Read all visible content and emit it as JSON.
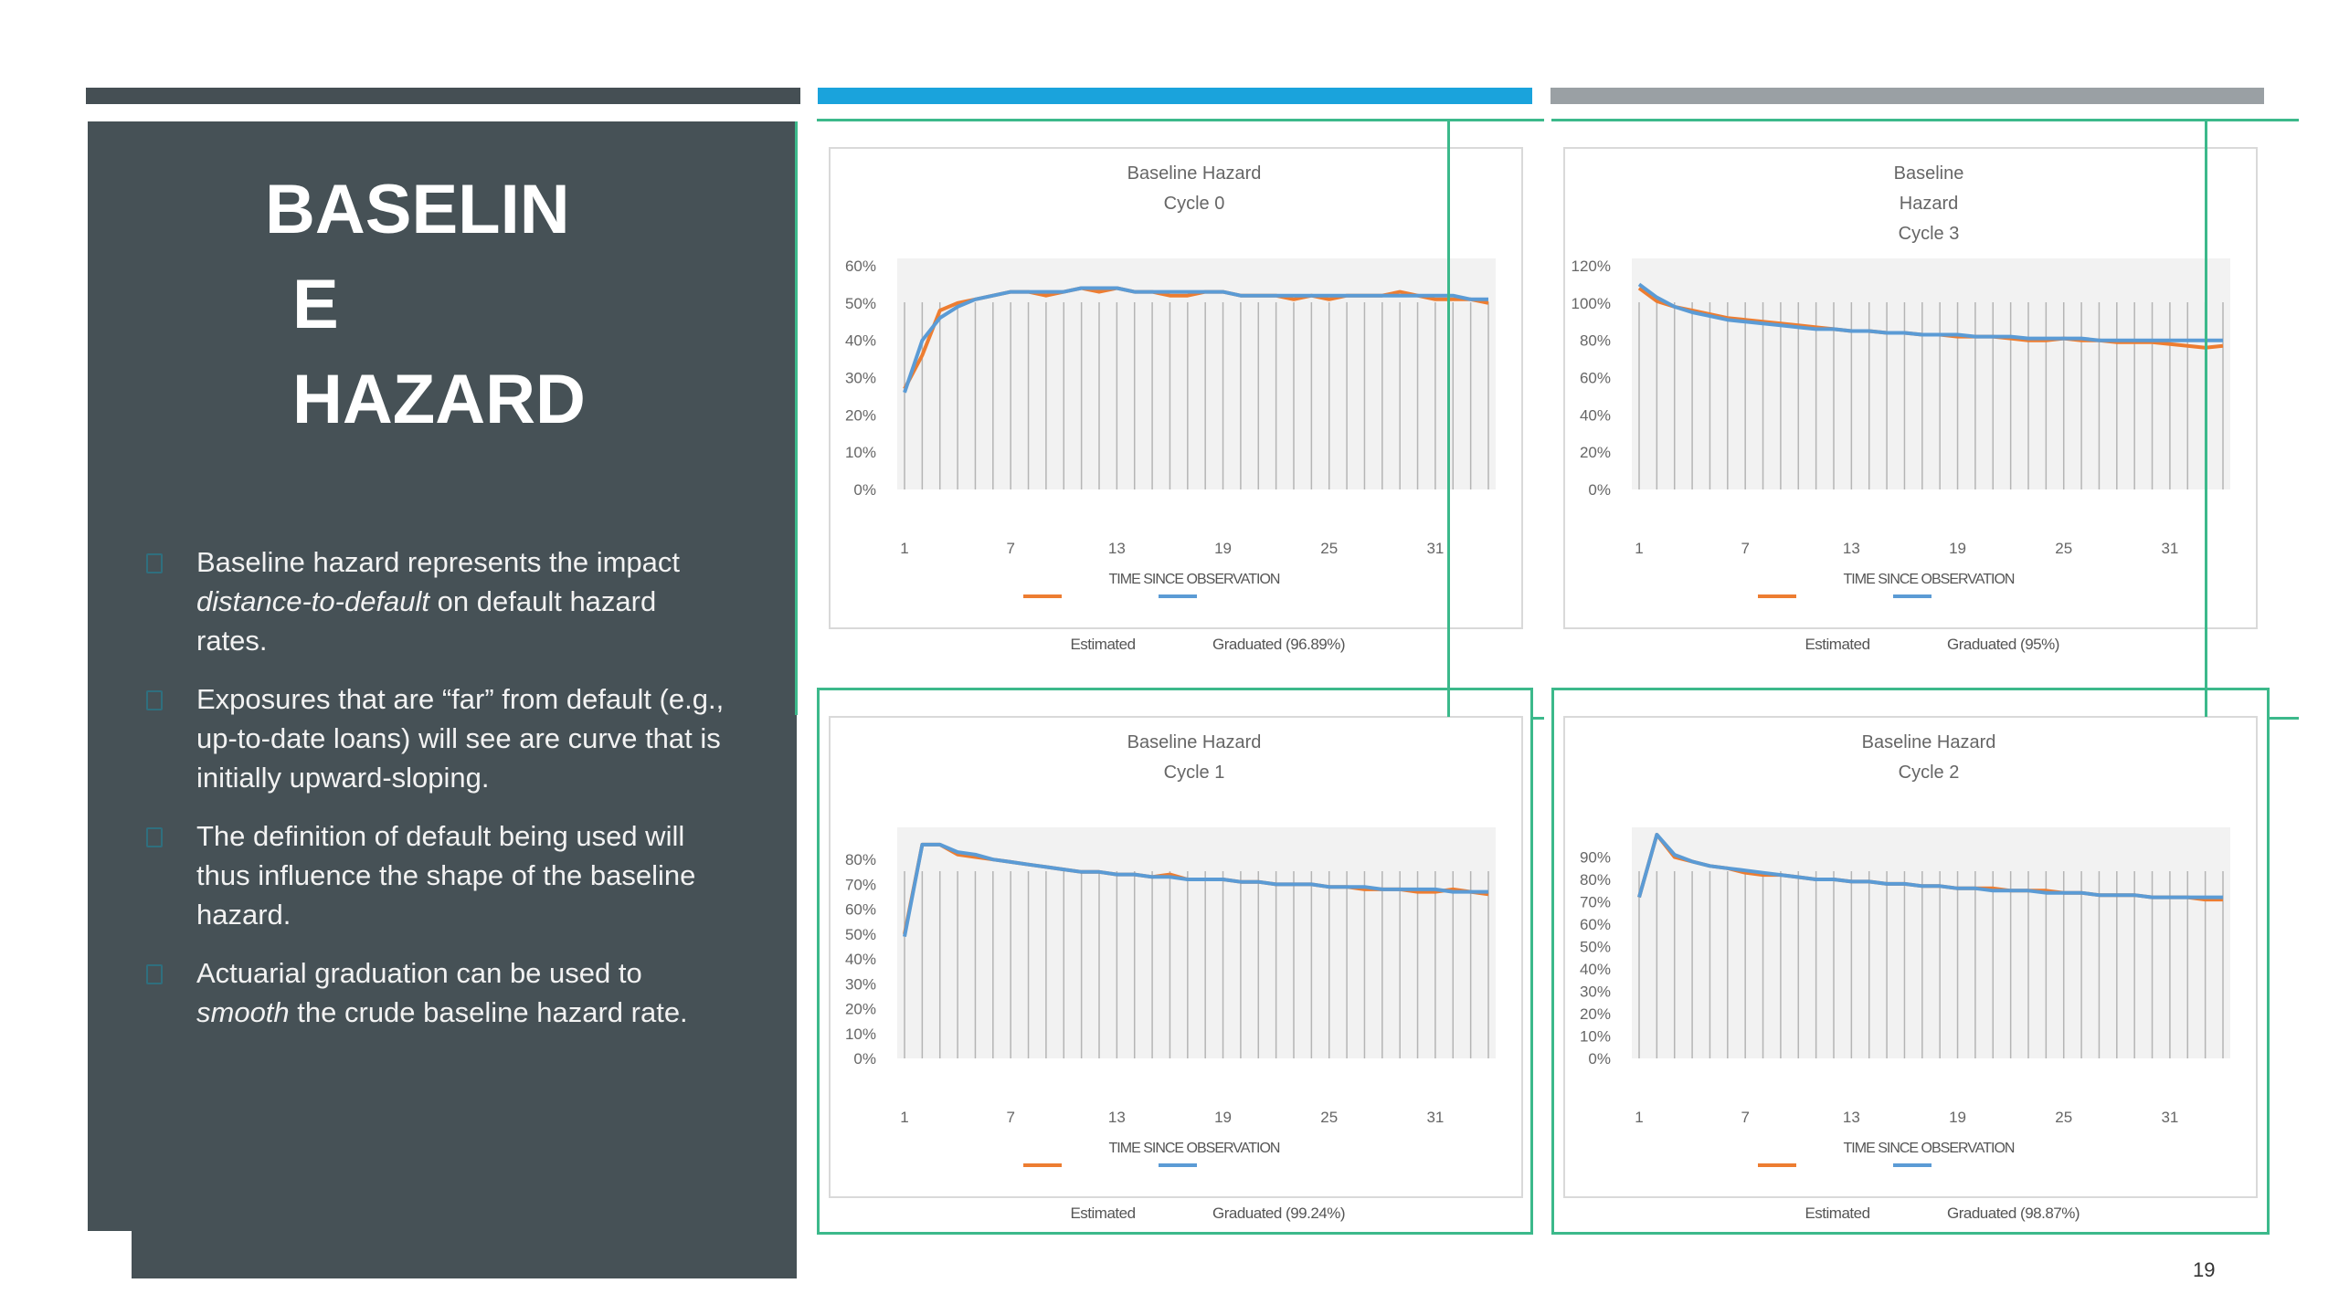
{
  "slide": {
    "title_lines": [
      "BASELIN",
      "E",
      "HAZARD"
    ],
    "page_number": "19",
    "colors": {
      "panel": "#465156",
      "accent_blue": "#1aa3dc",
      "accent_green": "#3cb98b",
      "estimated": "#ed7d31",
      "graduated": "#5b9bd5"
    }
  },
  "bullets": [
    {
      "pre": "Baseline hazard represents the impact ",
      "em": "distance-to-default",
      "post": " on default hazard rates."
    },
    {
      "pre": "Exposures that are “far” from default (e.g., up-to-date loans) will see are curve that is initially upward-sloping.",
      "em": "",
      "post": ""
    },
    {
      "pre": "The definition of default being used will thus influence the shape of the baseline hazard.",
      "em": "",
      "post": ""
    },
    {
      "pre": "Actuarial graduation can be used to ",
      "em": "smooth",
      "post": " the crude baseline hazard rate."
    }
  ],
  "chart_data": [
    {
      "type": "line",
      "title_lines": [
        "Baseline Hazard",
        "Cycle 0"
      ],
      "xlabel": "TIME SINCE OBSERVATION",
      "x_ticks": [
        1,
        7,
        13,
        19,
        25,
        31
      ],
      "ylim": [
        0,
        0.6
      ],
      "y_ticks": [
        0,
        0.1,
        0.2,
        0.3,
        0.4,
        0.5,
        0.6
      ],
      "y_tick_labels": [
        "0%",
        "10%",
        "20%",
        "30%",
        "40%",
        "50%",
        "60%"
      ],
      "series": [
        {
          "name": "Estimated",
          "color": "#ed7d31",
          "values": [
            0.27,
            0.36,
            0.48,
            0.5,
            0.51,
            0.52,
            0.53,
            0.53,
            0.52,
            0.53,
            0.54,
            0.53,
            0.54,
            0.53,
            0.53,
            0.52,
            0.52,
            0.53,
            0.53,
            0.52,
            0.52,
            0.52,
            0.51,
            0.52,
            0.51,
            0.52,
            0.52,
            0.52,
            0.53,
            0.52,
            0.51,
            0.51,
            0.51,
            0.5
          ]
        },
        {
          "name": "Graduated (96.89%)",
          "color": "#5b9bd5",
          "values": [
            0.26,
            0.4,
            0.46,
            0.49,
            0.51,
            0.52,
            0.53,
            0.53,
            0.53,
            0.53,
            0.54,
            0.54,
            0.54,
            0.53,
            0.53,
            0.53,
            0.53,
            0.53,
            0.53,
            0.52,
            0.52,
            0.52,
            0.52,
            0.52,
            0.52,
            0.52,
            0.52,
            0.52,
            0.52,
            0.52,
            0.52,
            0.52,
            0.51,
            0.51
          ]
        }
      ]
    },
    {
      "type": "line",
      "title_lines": [
        "Baseline",
        "Hazard",
        "Cycle 3"
      ],
      "xlabel": "TIME SINCE OBSERVATION",
      "x_ticks": [
        1,
        7,
        13,
        19,
        25,
        31
      ],
      "ylim": [
        0,
        1.2
      ],
      "y_ticks": [
        0,
        0.2,
        0.4,
        0.6,
        0.8,
        1.0,
        1.2
      ],
      "y_tick_labels": [
        "0%",
        "20%",
        "40%",
        "60%",
        "80%",
        "100%",
        "120%"
      ],
      "series": [
        {
          "name": "Estimated",
          "color": "#ed7d31",
          "values": [
            1.08,
            1.01,
            0.98,
            0.96,
            0.94,
            0.92,
            0.91,
            0.9,
            0.89,
            0.88,
            0.87,
            0.86,
            0.85,
            0.85,
            0.84,
            0.84,
            0.83,
            0.83,
            0.82,
            0.82,
            0.82,
            0.81,
            0.8,
            0.8,
            0.81,
            0.8,
            0.8,
            0.79,
            0.79,
            0.79,
            0.78,
            0.77,
            0.76,
            0.77
          ]
        },
        {
          "name": "Graduated (95%)",
          "color": "#5b9bd5",
          "values": [
            1.1,
            1.03,
            0.98,
            0.95,
            0.93,
            0.91,
            0.9,
            0.89,
            0.88,
            0.87,
            0.86,
            0.86,
            0.85,
            0.85,
            0.84,
            0.84,
            0.83,
            0.83,
            0.83,
            0.82,
            0.82,
            0.82,
            0.81,
            0.81,
            0.81,
            0.81,
            0.8,
            0.8,
            0.8,
            0.8,
            0.8,
            0.8,
            0.8,
            0.8
          ]
        }
      ]
    },
    {
      "type": "line",
      "title_lines": [
        "Baseline Hazard",
        "Cycle 1"
      ],
      "xlabel": "TIME SINCE OBSERVATION",
      "x_ticks": [
        1,
        7,
        13,
        19,
        25,
        31
      ],
      "ylim": [
        0,
        0.9
      ],
      "y_ticks": [
        0,
        0.1,
        0.2,
        0.3,
        0.4,
        0.5,
        0.6,
        0.7,
        0.8
      ],
      "y_tick_labels": [
        "0%",
        "10%",
        "20%",
        "30%",
        "40%",
        "50%",
        "60%",
        "70%",
        "80%"
      ],
      "series": [
        {
          "name": "Estimated",
          "color": "#ed7d31",
          "values": [
            0.5,
            0.86,
            0.86,
            0.82,
            0.81,
            0.8,
            0.79,
            0.78,
            0.77,
            0.76,
            0.75,
            0.75,
            0.74,
            0.74,
            0.73,
            0.74,
            0.72,
            0.72,
            0.72,
            0.71,
            0.71,
            0.7,
            0.7,
            0.7,
            0.69,
            0.69,
            0.68,
            0.68,
            0.68,
            0.67,
            0.67,
            0.68,
            0.67,
            0.66
          ]
        },
        {
          "name": "Graduated (99.24%)",
          "color": "#5b9bd5",
          "values": [
            0.49,
            0.86,
            0.86,
            0.83,
            0.82,
            0.8,
            0.79,
            0.78,
            0.77,
            0.76,
            0.75,
            0.75,
            0.74,
            0.74,
            0.73,
            0.73,
            0.72,
            0.72,
            0.72,
            0.71,
            0.71,
            0.7,
            0.7,
            0.7,
            0.69,
            0.69,
            0.69,
            0.68,
            0.68,
            0.68,
            0.68,
            0.67,
            0.67,
            0.67
          ]
        }
      ]
    },
    {
      "type": "line",
      "title_lines": [
        "Baseline Hazard",
        "Cycle 2"
      ],
      "xlabel": "TIME SINCE OBSERVATION",
      "x_ticks": [
        1,
        7,
        13,
        19,
        25,
        31
      ],
      "ylim": [
        0,
        1.0
      ],
      "y_ticks": [
        0,
        0.1,
        0.2,
        0.3,
        0.4,
        0.5,
        0.6,
        0.7,
        0.8,
        0.9
      ],
      "y_tick_labels": [
        "0%",
        "10%",
        "20%",
        "30%",
        "40%",
        "50%",
        "60%",
        "70%",
        "80%",
        "90%"
      ],
      "series": [
        {
          "name": "Estimated",
          "color": "#ed7d31",
          "values": [
            0.72,
            1.0,
            0.9,
            0.88,
            0.86,
            0.85,
            0.83,
            0.82,
            0.82,
            0.81,
            0.8,
            0.8,
            0.79,
            0.79,
            0.78,
            0.78,
            0.77,
            0.77,
            0.76,
            0.76,
            0.76,
            0.75,
            0.75,
            0.75,
            0.74,
            0.74,
            0.73,
            0.73,
            0.73,
            0.72,
            0.72,
            0.72,
            0.71,
            0.71
          ]
        },
        {
          "name": "Graduated (98.87%)",
          "color": "#5b9bd5",
          "values": [
            0.72,
            1.0,
            0.91,
            0.88,
            0.86,
            0.85,
            0.84,
            0.83,
            0.82,
            0.81,
            0.8,
            0.8,
            0.79,
            0.79,
            0.78,
            0.78,
            0.77,
            0.77,
            0.76,
            0.76,
            0.75,
            0.75,
            0.75,
            0.74,
            0.74,
            0.74,
            0.73,
            0.73,
            0.73,
            0.72,
            0.72,
            0.72,
            0.72,
            0.72
          ]
        }
      ]
    }
  ]
}
